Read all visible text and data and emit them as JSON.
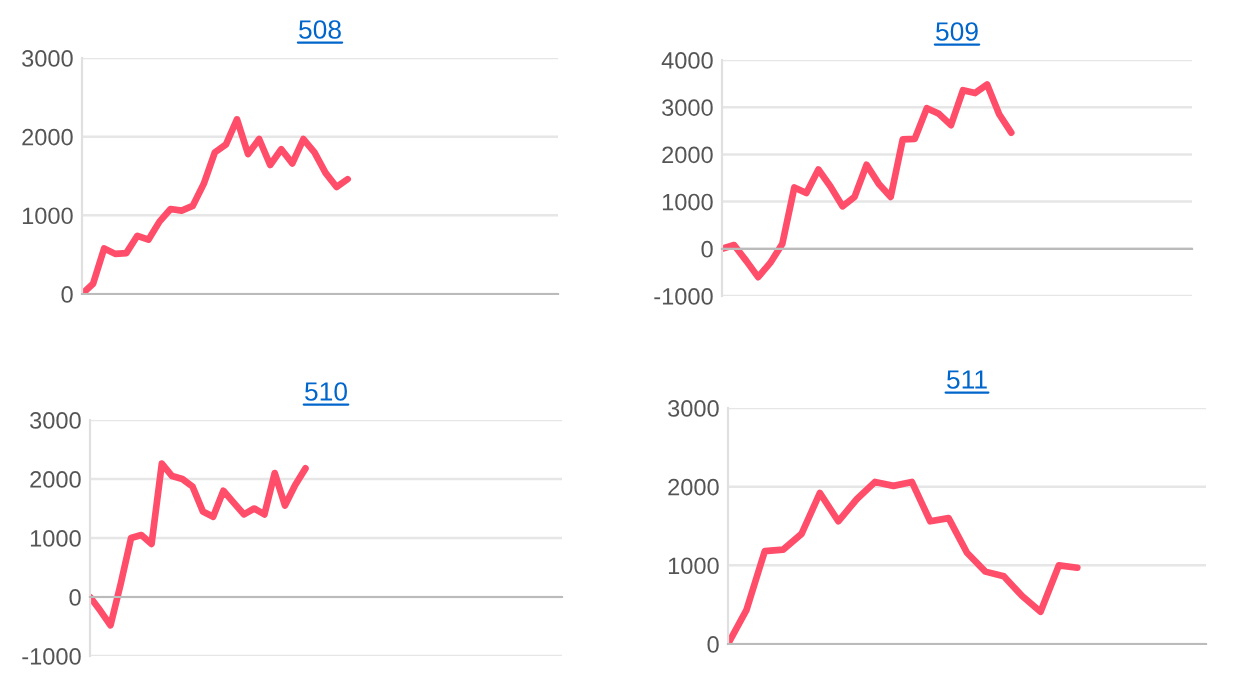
{
  "chart_data": [
    {
      "type": "line",
      "title": "508",
      "categories": [
        null,
        null,
        null,
        null,
        null,
        null,
        null,
        null,
        null,
        null,
        null,
        null,
        null,
        null,
        null,
        null,
        null,
        null,
        null,
        null,
        null,
        null,
        null,
        null,
        null,
        null,
        null,
        null,
        null,
        null,
        null,
        null,
        null,
        null,
        null,
        null,
        null,
        null,
        null,
        null,
        null,
        null,
        null,
        null
      ],
      "series": [
        {
          "color": "#ff4d6a",
          "values": [
            0,
            130,
            580,
            510,
            520,
            740,
            690,
            920,
            1080,
            1060,
            1120,
            1400,
            1800,
            1900,
            2220,
            1780,
            1970,
            1640,
            1840,
            1660,
            1970,
            1800,
            1540,
            1360,
            1460,
            null,
            null,
            null,
            null,
            null,
            null,
            null,
            null,
            null,
            null,
            null,
            null,
            null,
            null,
            null,
            null,
            null,
            null,
            null
          ]
        }
      ],
      "ylim": [
        0,
        3000
      ],
      "yticks": [
        0,
        1000,
        2000,
        3000
      ],
      "grid": "y",
      "tick_labels": "y",
      "marker": "none",
      "line_style": "solid"
    },
    {
      "type": "line",
      "title": "509",
      "categories": [
        null,
        null,
        null,
        null,
        null,
        null,
        null,
        null,
        null,
        null,
        null,
        null,
        null,
        null,
        null,
        null,
        null,
        null,
        null,
        null,
        null,
        null,
        null,
        null,
        null,
        null,
        null,
        null,
        null,
        null,
        null,
        null,
        null,
        null,
        null,
        null,
        null,
        null,
        null,
        null
      ],
      "series": [
        {
          "color": "#ff4d6a",
          "values": [
            0,
            80,
            -250,
            -600,
            -300,
            100,
            1300,
            1180,
            1680,
            1320,
            900,
            1100,
            1780,
            1380,
            1100,
            2320,
            2330,
            2980,
            2860,
            2620,
            3360,
            3300,
            3480,
            2850,
            2460,
            null,
            null,
            null,
            null,
            null,
            null,
            null,
            null,
            null,
            null,
            null,
            null,
            null,
            null,
            null
          ]
        }
      ],
      "ylim": [
        -1000,
        4000
      ],
      "yticks": [
        -1000,
        0,
        1000,
        2000,
        3000,
        4000
      ],
      "grid": "y",
      "tick_labels": "y",
      "marker": "none",
      "line_style": "solid"
    },
    {
      "type": "line",
      "title": "510",
      "categories": [
        null,
        null,
        null,
        null,
        null,
        null,
        null,
        null,
        null,
        null,
        null,
        null,
        null,
        null,
        null,
        null,
        null,
        null,
        null,
        null,
        null,
        null,
        null,
        null,
        null,
        null,
        null,
        null,
        null,
        null,
        null,
        null,
        null,
        null,
        null,
        null,
        null,
        null,
        null,
        null,
        null,
        null,
        null,
        null,
        null,
        null,
        null
      ],
      "series": [
        {
          "color": "#ff4d6a",
          "values": [
            0,
            -230,
            -480,
            230,
            1000,
            1050,
            900,
            2260,
            2050,
            2000,
            1870,
            1450,
            1360,
            1800,
            1600,
            1400,
            1500,
            1400,
            2100,
            1550,
            1900,
            2180,
            null,
            null,
            null,
            null,
            null,
            null,
            null,
            null,
            null,
            null,
            null,
            null,
            null,
            null,
            null,
            null,
            null,
            null,
            null,
            null,
            null,
            null,
            null,
            null,
            null
          ]
        }
      ],
      "ylim": [
        -1000,
        3000
      ],
      "yticks": [
        -1000,
        0,
        1000,
        2000,
        3000
      ],
      "grid": "y",
      "tick_labels": "y",
      "marker": "none",
      "line_style": "solid"
    },
    {
      "type": "line",
      "title": "511",
      "categories": [
        null,
        null,
        null,
        null,
        null,
        null,
        null,
        null,
        null,
        null,
        null,
        null,
        null,
        null,
        null,
        null,
        null,
        null,
        null,
        null,
        null,
        null,
        null,
        null,
        null,
        null,
        null
      ],
      "series": [
        {
          "color": "#ff4d6a",
          "values": [
            0,
            430,
            1180,
            1200,
            1400,
            1920,
            1560,
            1840,
            2060,
            2010,
            2060,
            1560,
            1600,
            1160,
            920,
            860,
            610,
            410,
            1000,
            970,
            null,
            null,
            null,
            null,
            null,
            null,
            null
          ]
        }
      ],
      "ylim": [
        0,
        3000
      ],
      "yticks": [
        0,
        1000,
        2000,
        3000
      ],
      "grid": "y",
      "tick_labels": "y",
      "marker": "none",
      "line_style": "solid"
    }
  ]
}
